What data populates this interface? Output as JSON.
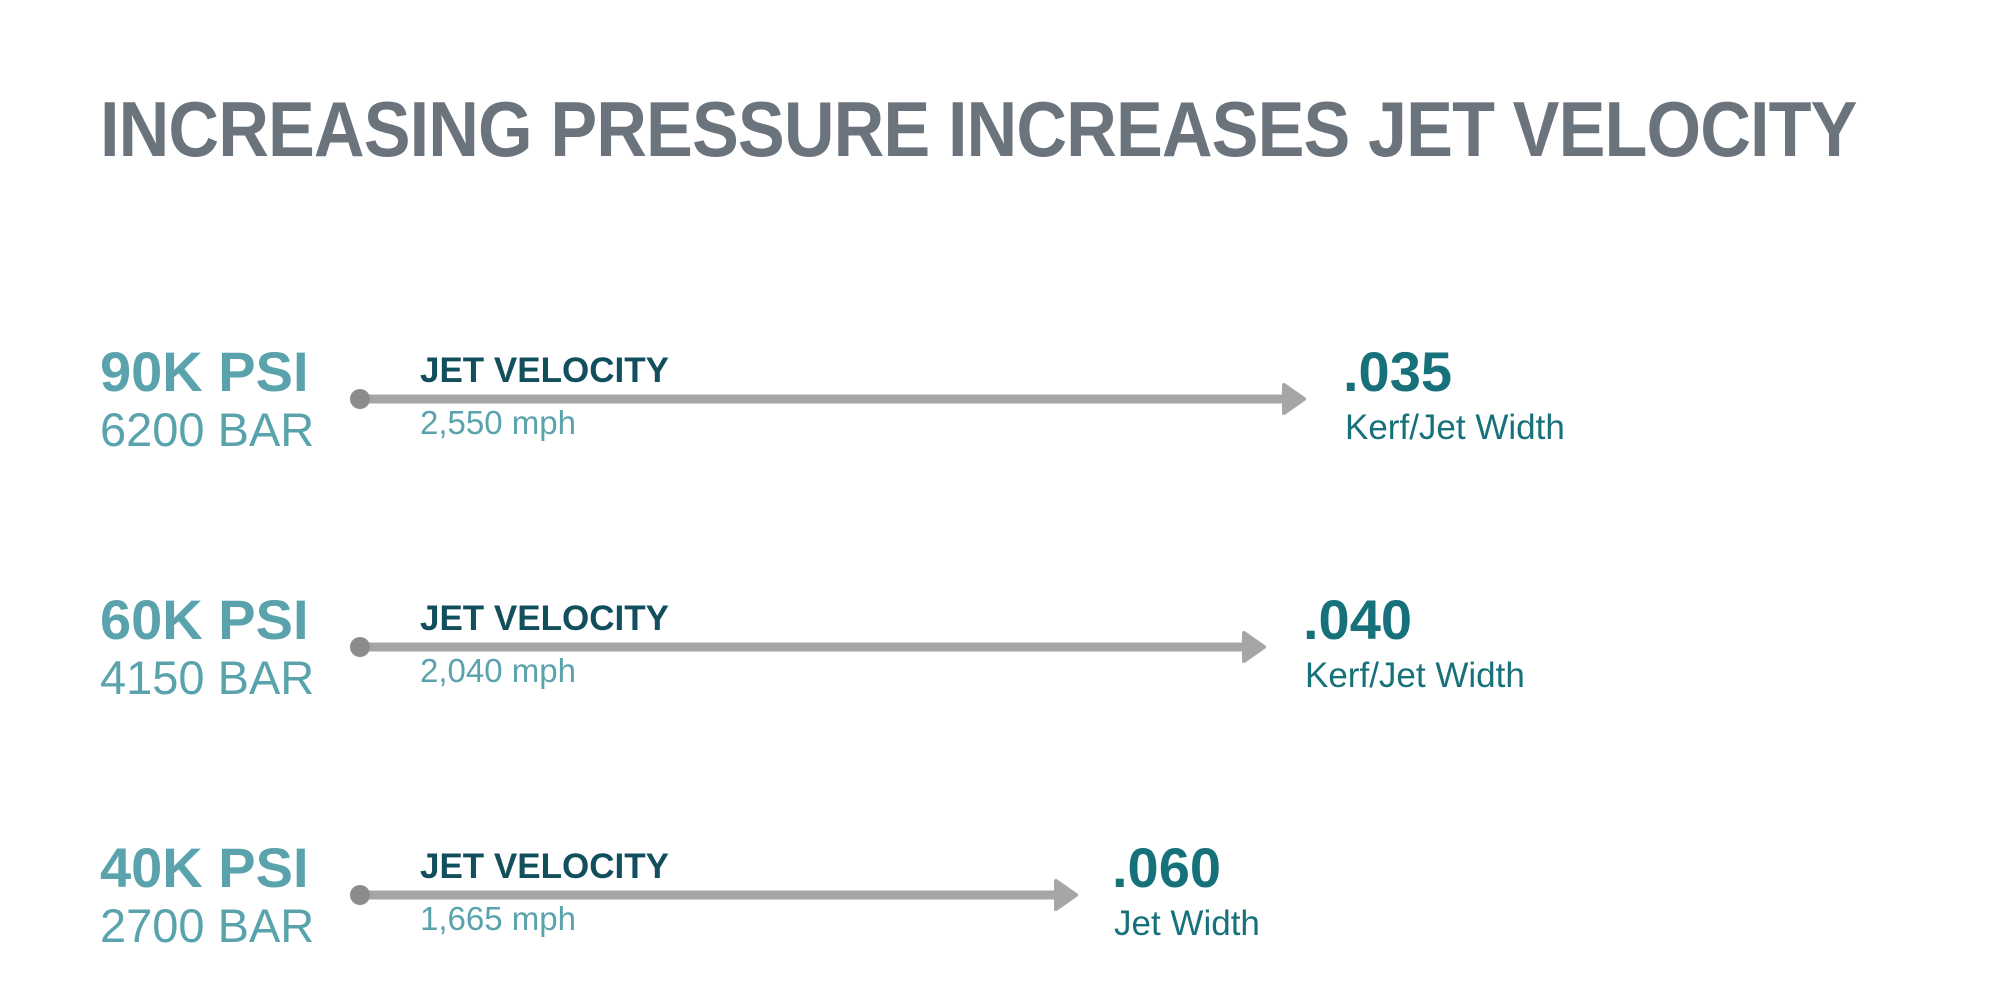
{
  "title": "INCREASING PRESSURE INCREASES JET VELOCITY",
  "rows": [
    {
      "psi": "90K PSI",
      "bar": "6200 BAR",
      "velocity_label": "JET VELOCITY",
      "velocity": "2,550 mph",
      "width_value": ".035",
      "width_label": "Kerf/Jet Width"
    },
    {
      "psi": "60K PSI",
      "bar": "4150 BAR",
      "velocity_label": "JET VELOCITY",
      "velocity": "2,040 mph",
      "width_value": ".040",
      "width_label": "Kerf/Jet Width"
    },
    {
      "psi": "40K PSI",
      "bar": "2700 BAR",
      "velocity_label": "JET VELOCITY",
      "velocity": "1,665 mph",
      "width_value": ".060",
      "width_label": "Jet Width"
    }
  ],
  "colors": {
    "title": "#6b747c",
    "pressure": "#5aa3ad",
    "velocity_label": "#124f5c",
    "width": "#16717b",
    "arrow": "#a6a6a6",
    "arrow_dot": "#8c8c8c"
  }
}
